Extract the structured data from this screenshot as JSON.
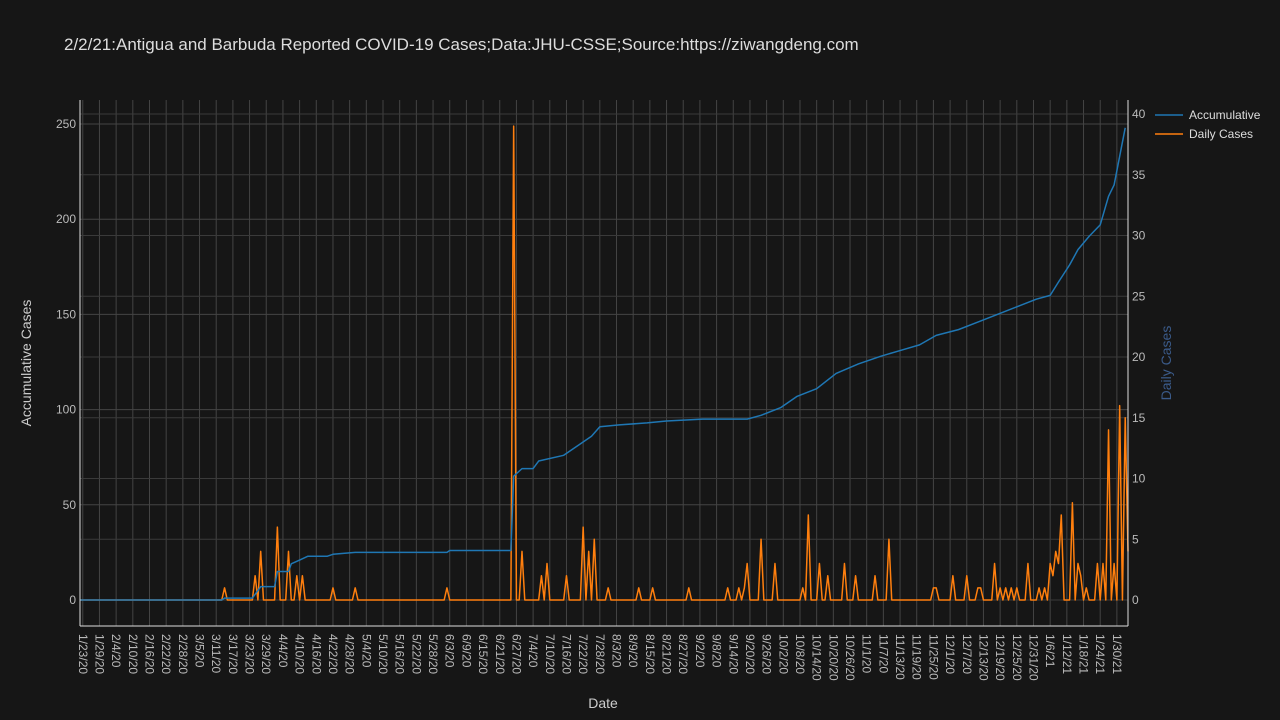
{
  "chart_data": {
    "type": "line",
    "title": "2/2/21:Antigua and Barbuda Reported COVID-19 Cases;Data:JHU-CSSE;Source:https://ziwangdeng.com",
    "xlabel": "Date",
    "ylabel": "Accumulative Cases",
    "y2label": "Daily Cases",
    "ylim": [
      0,
      250
    ],
    "y2lim": [
      0,
      40
    ],
    "y_ticks": [
      "0",
      "50",
      "100",
      "150",
      "200",
      "250"
    ],
    "y2_ticks": [
      "0",
      "5",
      "10",
      "15",
      "20",
      "25",
      "30",
      "35",
      "40"
    ],
    "x_ticks": [
      "1/23/20",
      "1/29/20",
      "2/4/20",
      "2/10/20",
      "2/16/20",
      "2/22/20",
      "2/28/20",
      "3/5/20",
      "3/11/20",
      "3/17/20",
      "3/23/20",
      "3/29/20",
      "4/4/20",
      "4/10/20",
      "4/16/20",
      "4/22/20",
      "4/28/20",
      "5/4/20",
      "5/10/20",
      "5/16/20",
      "5/22/20",
      "5/28/20",
      "6/3/20",
      "6/9/20",
      "6/15/20",
      "6/21/20",
      "6/27/20",
      "7/4/20",
      "7/10/20",
      "7/16/20",
      "7/22/20",
      "7/28/20",
      "8/3/20",
      "8/9/20",
      "8/15/20",
      "8/21/20",
      "8/27/20",
      "9/2/20",
      "9/8/20",
      "9/14/20",
      "9/20/20",
      "9/26/20",
      "10/2/20",
      "10/8/20",
      "10/14/20",
      "10/20/20",
      "10/26/20",
      "11/1/20",
      "11/7/20",
      "11/13/20",
      "11/19/20",
      "11/25/20",
      "12/1/20",
      "12/7/20",
      "12/13/20",
      "12/19/20",
      "12/25/20",
      "12/31/20",
      "1/6/21",
      "1/12/21",
      "1/18/21",
      "1/24/21",
      "1/30/21"
    ],
    "x_range": [
      "2020-01-22",
      "2021-02-02"
    ],
    "grid": true,
    "legend_position": "top-right",
    "colors": {
      "accumulative": "#1f77b4",
      "daily": "#ff7f0e",
      "background": "#161616",
      "grid": "#444444"
    },
    "series": [
      {
        "name": "Accumulative",
        "axis": "left",
        "points": [
          [
            "2020-01-22",
            0
          ],
          [
            "2020-03-13",
            0
          ],
          [
            "2020-03-14",
            1
          ],
          [
            "2020-03-24",
            1
          ],
          [
            "2020-03-25",
            3
          ],
          [
            "2020-03-27",
            7
          ],
          [
            "2020-04-01",
            7
          ],
          [
            "2020-04-02",
            15
          ],
          [
            "2020-04-06",
            15
          ],
          [
            "2020-04-07",
            19
          ],
          [
            "2020-04-10",
            21
          ],
          [
            "2020-04-13",
            23
          ],
          [
            "2020-04-20",
            23
          ],
          [
            "2020-04-22",
            24
          ],
          [
            "2020-04-30",
            25
          ],
          [
            "2020-06-02",
            25
          ],
          [
            "2020-06-03",
            26
          ],
          [
            "2020-06-25",
            26
          ],
          [
            "2020-06-26",
            65
          ],
          [
            "2020-06-29",
            69
          ],
          [
            "2020-07-03",
            69
          ],
          [
            "2020-07-05",
            73
          ],
          [
            "2020-07-14",
            76
          ],
          [
            "2020-07-20",
            82
          ],
          [
            "2020-07-24",
            86
          ],
          [
            "2020-07-27",
            91
          ],
          [
            "2020-08-03",
            92
          ],
          [
            "2020-08-13",
            93
          ],
          [
            "2020-08-20",
            94
          ],
          [
            "2020-09-02",
            95
          ],
          [
            "2020-09-18",
            95
          ],
          [
            "2020-09-23",
            97
          ],
          [
            "2020-09-30",
            101
          ],
          [
            "2020-10-06",
            107
          ],
          [
            "2020-10-13",
            111
          ],
          [
            "2020-10-20",
            119
          ],
          [
            "2020-10-28",
            124
          ],
          [
            "2020-11-05",
            128
          ],
          [
            "2020-11-12",
            131
          ],
          [
            "2020-11-19",
            134
          ],
          [
            "2020-11-25",
            139
          ],
          [
            "2020-12-03",
            142
          ],
          [
            "2020-12-10",
            146
          ],
          [
            "2020-12-17",
            150
          ],
          [
            "2020-12-24",
            154
          ],
          [
            "2020-12-31",
            158
          ],
          [
            "2021-01-05",
            160
          ],
          [
            "2021-01-08",
            167
          ],
          [
            "2021-01-12",
            176
          ],
          [
            "2021-01-15",
            184
          ],
          [
            "2021-01-19",
            191
          ],
          [
            "2021-01-23",
            197
          ],
          [
            "2021-01-26",
            212
          ],
          [
            "2021-01-28",
            218
          ],
          [
            "2021-01-30",
            233
          ],
          [
            "2021-02-01",
            248
          ]
        ]
      },
      {
        "name": "Daily Cases",
        "axis": "right",
        "points": [
          [
            "2020-01-22",
            0
          ],
          [
            "2020-03-13",
            0
          ],
          [
            "2020-03-14",
            1
          ],
          [
            "2020-03-15",
            0
          ],
          [
            "2020-03-24",
            0
          ],
          [
            "2020-03-25",
            2
          ],
          [
            "2020-03-26",
            0
          ],
          [
            "2020-03-27",
            4
          ],
          [
            "2020-03-28",
            0
          ],
          [
            "2020-04-01",
            0
          ],
          [
            "2020-04-02",
            6
          ],
          [
            "2020-04-03",
            0
          ],
          [
            "2020-04-05",
            0
          ],
          [
            "2020-04-06",
            4
          ],
          [
            "2020-04-07",
            0
          ],
          [
            "2020-04-08",
            0
          ],
          [
            "2020-04-09",
            2
          ],
          [
            "2020-04-10",
            0
          ],
          [
            "2020-04-11",
            2
          ],
          [
            "2020-04-12",
            0
          ],
          [
            "2020-04-21",
            0
          ],
          [
            "2020-04-22",
            1
          ],
          [
            "2020-04-23",
            0
          ],
          [
            "2020-04-29",
            0
          ],
          [
            "2020-04-30",
            1
          ],
          [
            "2020-05-01",
            0
          ],
          [
            "2020-06-01",
            0
          ],
          [
            "2020-06-02",
            1
          ],
          [
            "2020-06-03",
            0
          ],
          [
            "2020-06-25",
            0
          ],
          [
            "2020-06-26",
            39
          ],
          [
            "2020-06-27",
            0
          ],
          [
            "2020-06-28",
            0
          ],
          [
            "2020-06-29",
            4
          ],
          [
            "2020-06-30",
            0
          ],
          [
            "2020-07-05",
            0
          ],
          [
            "2020-07-06",
            2
          ],
          [
            "2020-07-07",
            0
          ],
          [
            "2020-07-08",
            3
          ],
          [
            "2020-07-09",
            0
          ],
          [
            "2020-07-14",
            0
          ],
          [
            "2020-07-15",
            2
          ],
          [
            "2020-07-16",
            0
          ],
          [
            "2020-07-20",
            0
          ],
          [
            "2020-07-21",
            6
          ],
          [
            "2020-07-22",
            0
          ],
          [
            "2020-07-23",
            4
          ],
          [
            "2020-07-24",
            0
          ],
          [
            "2020-07-25",
            5
          ],
          [
            "2020-07-26",
            0
          ],
          [
            "2020-07-29",
            0
          ],
          [
            "2020-07-30",
            1
          ],
          [
            "2020-07-31",
            0
          ],
          [
            "2020-08-09",
            0
          ],
          [
            "2020-08-10",
            1
          ],
          [
            "2020-08-11",
            0
          ],
          [
            "2020-08-14",
            0
          ],
          [
            "2020-08-15",
            1
          ],
          [
            "2020-08-16",
            0
          ],
          [
            "2020-08-27",
            0
          ],
          [
            "2020-08-28",
            1
          ],
          [
            "2020-08-29",
            0
          ],
          [
            "2020-09-10",
            0
          ],
          [
            "2020-09-11",
            1
          ],
          [
            "2020-09-12",
            0
          ],
          [
            "2020-09-14",
            0
          ],
          [
            "2020-09-15",
            1
          ],
          [
            "2020-09-16",
            0
          ],
          [
            "2020-09-17",
            1
          ],
          [
            "2020-09-18",
            3
          ],
          [
            "2020-09-19",
            0
          ],
          [
            "2020-09-22",
            0
          ],
          [
            "2020-09-23",
            5
          ],
          [
            "2020-09-24",
            0
          ],
          [
            "2020-09-27",
            0
          ],
          [
            "2020-09-28",
            3
          ],
          [
            "2020-09-29",
            0
          ],
          [
            "2020-10-07",
            0
          ],
          [
            "2020-10-08",
            1
          ],
          [
            "2020-10-09",
            0
          ],
          [
            "2020-10-10",
            7
          ],
          [
            "2020-10-11",
            0
          ],
          [
            "2020-10-13",
            0
          ],
          [
            "2020-10-14",
            3
          ],
          [
            "2020-10-15",
            0
          ],
          [
            "2020-10-16",
            0
          ],
          [
            "2020-10-17",
            2
          ],
          [
            "2020-10-18",
            0
          ],
          [
            "2020-10-22",
            0
          ],
          [
            "2020-10-23",
            3
          ],
          [
            "2020-10-24",
            0
          ],
          [
            "2020-10-26",
            0
          ],
          [
            "2020-10-27",
            2
          ],
          [
            "2020-10-28",
            0
          ],
          [
            "2020-11-02",
            0
          ],
          [
            "2020-11-03",
            2
          ],
          [
            "2020-11-04",
            0
          ],
          [
            "2020-11-07",
            0
          ],
          [
            "2020-11-08",
            5
          ],
          [
            "2020-11-09",
            0
          ],
          [
            "2020-11-23",
            0
          ],
          [
            "2020-11-24",
            1
          ],
          [
            "2020-11-25",
            1
          ],
          [
            "2020-11-26",
            0
          ],
          [
            "2020-11-30",
            0
          ],
          [
            "2020-12-01",
            2
          ],
          [
            "2020-12-02",
            0
          ],
          [
            "2020-12-05",
            0
          ],
          [
            "2020-12-06",
            2
          ],
          [
            "2020-12-07",
            0
          ],
          [
            "2020-12-09",
            0
          ],
          [
            "2020-12-10",
            1
          ],
          [
            "2020-12-11",
            1
          ],
          [
            "2020-12-12",
            0
          ],
          [
            "2020-12-15",
            0
          ],
          [
            "2020-12-16",
            3
          ],
          [
            "2020-12-17",
            0
          ],
          [
            "2020-12-18",
            1
          ],
          [
            "2020-12-19",
            0
          ],
          [
            "2020-12-20",
            1
          ],
          [
            "2020-12-21",
            0
          ],
          [
            "2020-12-22",
            1
          ],
          [
            "2020-12-23",
            0
          ],
          [
            "2020-12-24",
            1
          ],
          [
            "2020-12-25",
            0
          ],
          [
            "2020-12-27",
            0
          ],
          [
            "2020-12-28",
            3
          ],
          [
            "2020-12-29",
            0
          ],
          [
            "2020-12-31",
            0
          ],
          [
            "2021-01-01",
            1
          ],
          [
            "2021-01-02",
            0
          ],
          [
            "2021-01-03",
            1
          ],
          [
            "2021-01-04",
            0
          ],
          [
            "2021-01-05",
            3
          ],
          [
            "2021-01-06",
            2
          ],
          [
            "2021-01-07",
            4
          ],
          [
            "2021-01-08",
            3
          ],
          [
            "2021-01-09",
            7
          ],
          [
            "2021-01-10",
            0
          ],
          [
            "2021-01-12",
            0
          ],
          [
            "2021-01-13",
            8
          ],
          [
            "2021-01-14",
            0
          ],
          [
            "2021-01-15",
            3
          ],
          [
            "2021-01-16",
            2
          ],
          [
            "2021-01-17",
            0
          ],
          [
            "2021-01-18",
            1
          ],
          [
            "2021-01-19",
            0
          ],
          [
            "2021-01-21",
            0
          ],
          [
            "2021-01-22",
            3
          ],
          [
            "2021-01-23",
            0
          ],
          [
            "2021-01-24",
            3
          ],
          [
            "2021-01-25",
            0
          ],
          [
            "2021-01-26",
            14
          ],
          [
            "2021-01-27",
            0
          ],
          [
            "2021-01-28",
            3
          ],
          [
            "2021-01-29",
            0
          ],
          [
            "2021-01-30",
            16
          ],
          [
            "2021-01-31",
            0
          ],
          [
            "2021-02-01",
            15
          ],
          [
            "2021-02-02",
            4
          ]
        ]
      }
    ]
  }
}
